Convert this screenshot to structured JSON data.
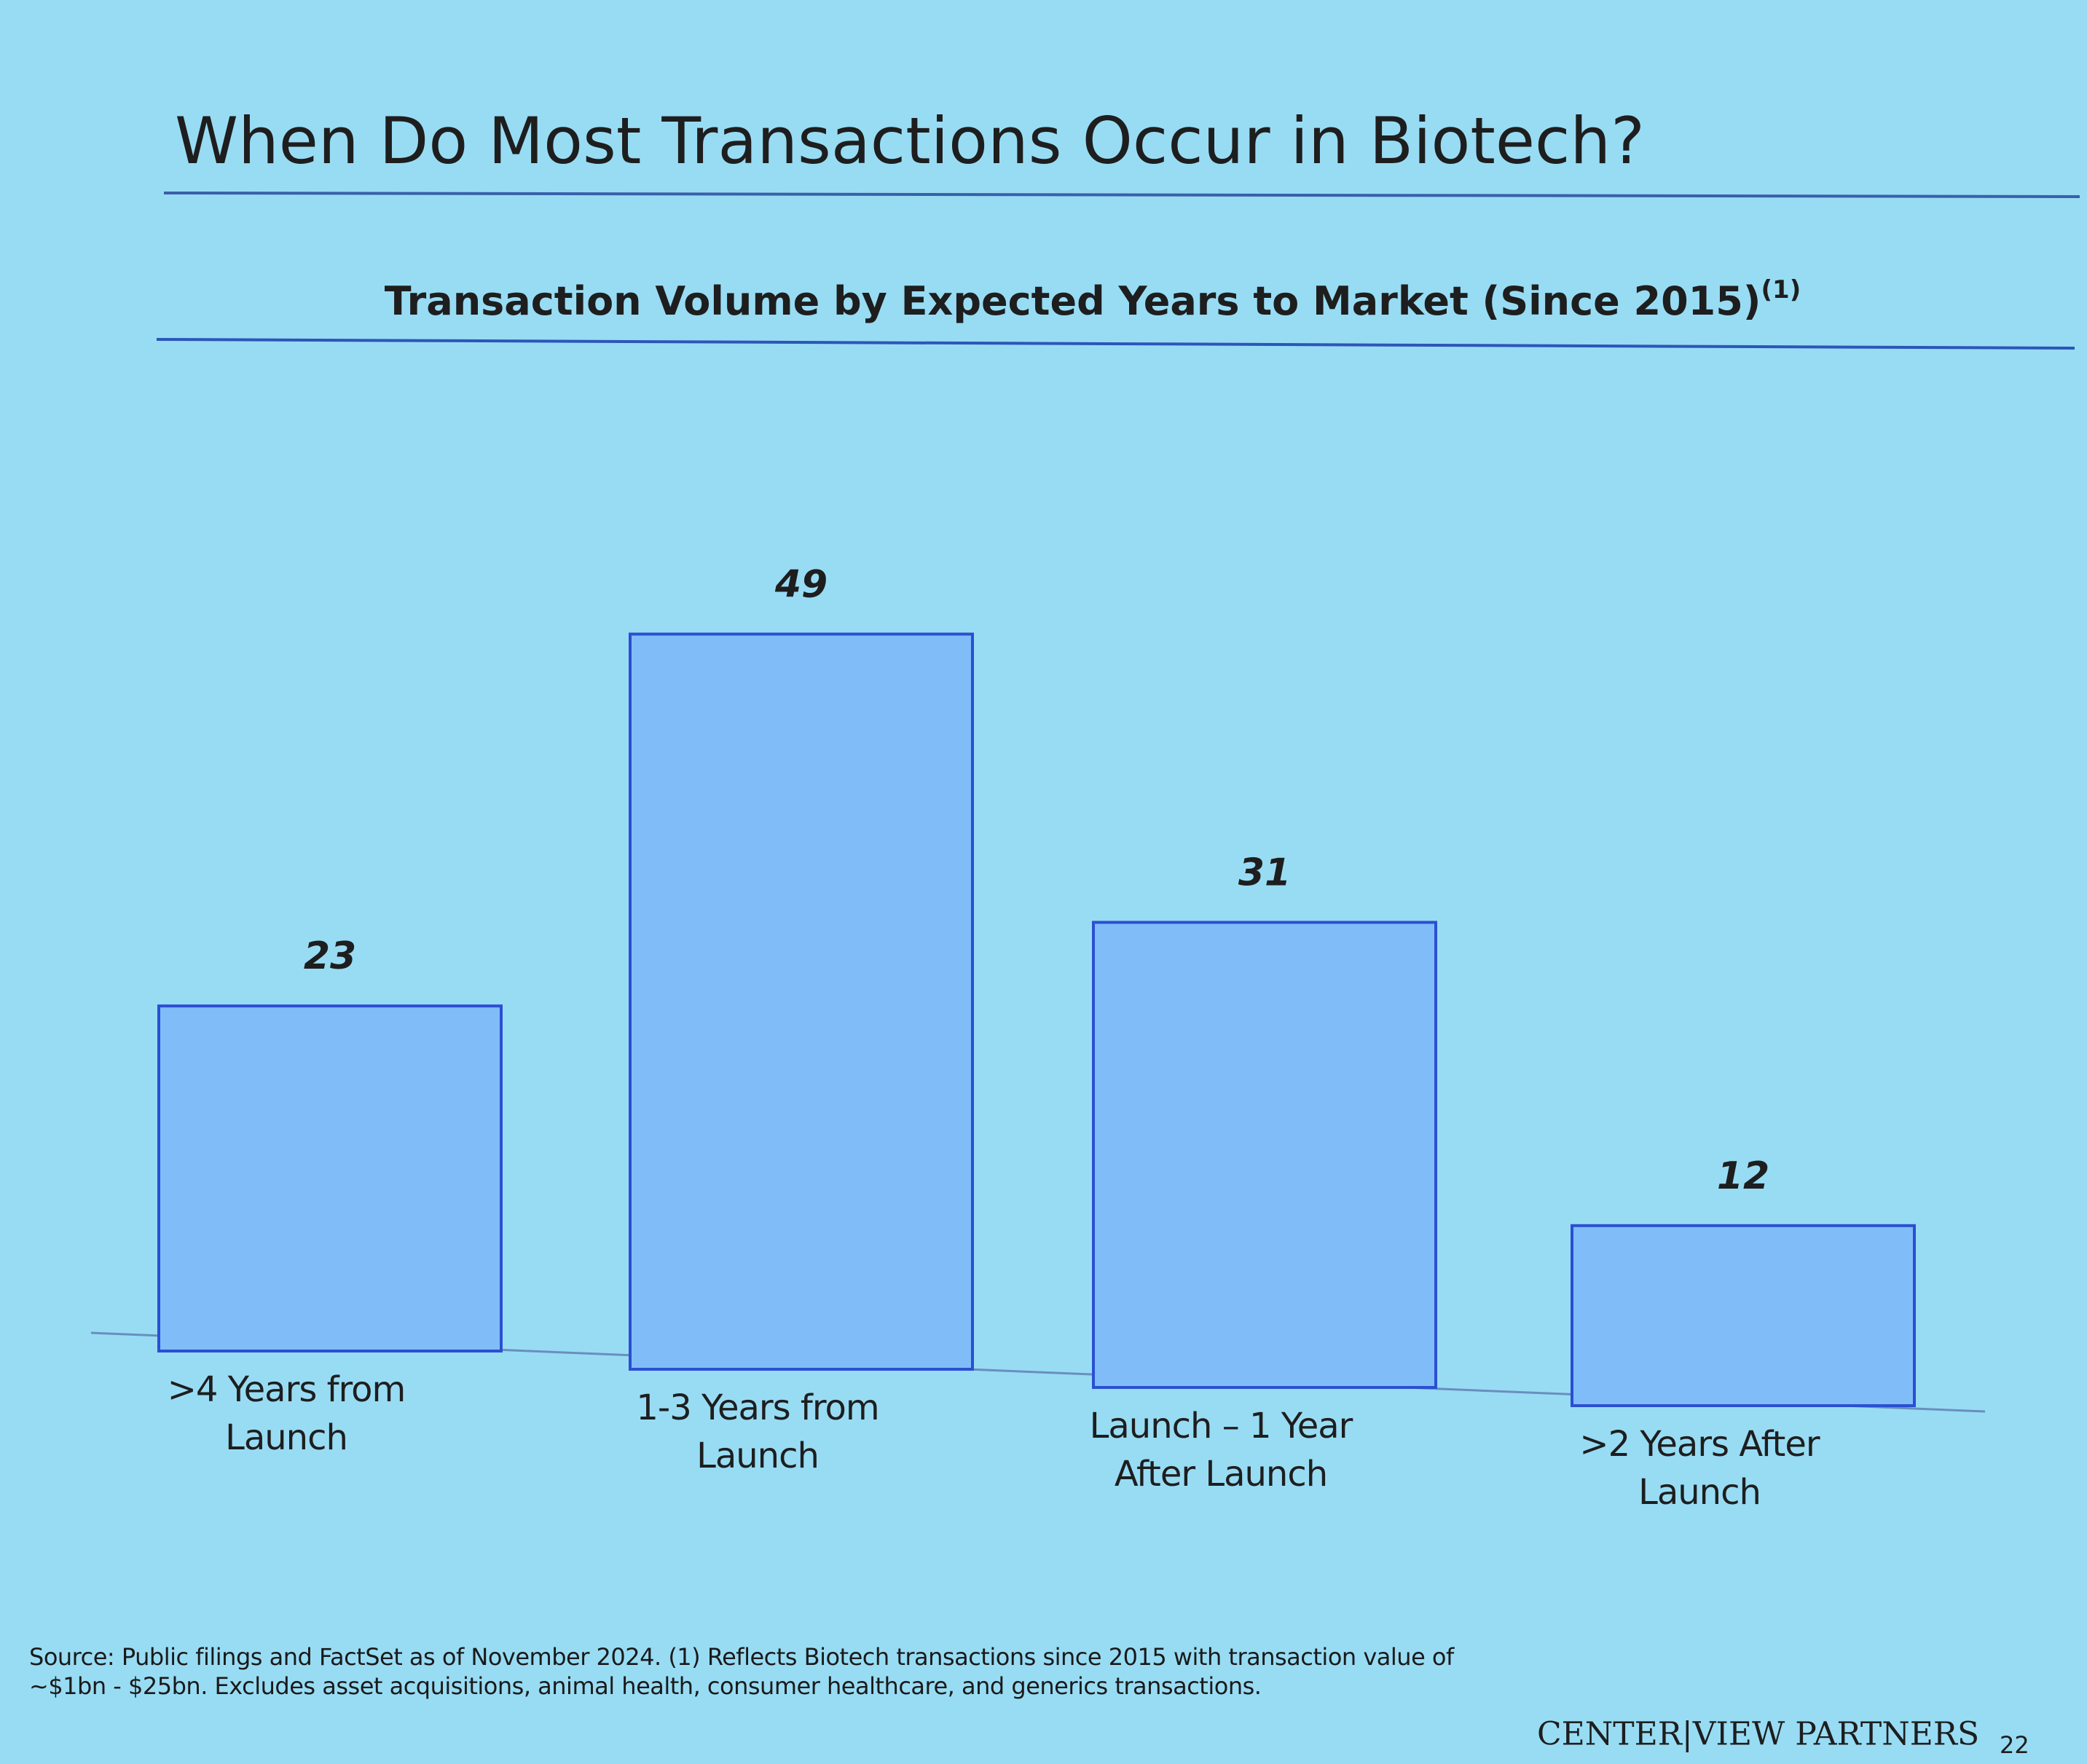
{
  "slide_title": "When Do Most Transactions Occur in Biotech?",
  "chart_data": {
    "type": "bar",
    "title": "Transaction Volume by Expected Years to Market (Since 2015)",
    "title_note": "(1)",
    "categories": [
      ">4 Years from Launch",
      "1-3 Years from Launch",
      "Launch – 1 Year After Launch",
      ">2 Years After Launch"
    ],
    "values": [
      23,
      49,
      31,
      12
    ],
    "color": "#80bdf8",
    "edge_color": "#2b4fd2",
    "label_color": "#2a2fc8"
  },
  "footer": {
    "source": "Source: Public filings and FactSet as of November 2024. (1) Reflects Biotech transactions since 2015 with transaction value of ~$1bn - $25bn. Excludes asset acquisitions, animal health, consumer healthcare, and generics transactions.",
    "logo": "CENTER|VIEW PARTNERS",
    "page": "22"
  }
}
